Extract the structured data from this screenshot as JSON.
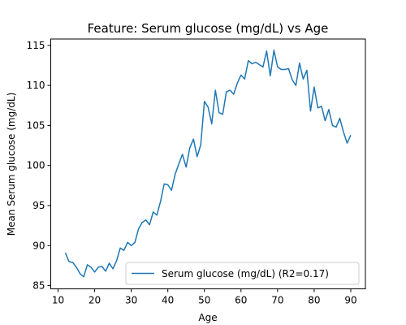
{
  "chart_data": {
    "type": "line",
    "title": "Feature: Serum glucose (mg/dL) vs Age",
    "xlabel": "Age",
    "ylabel": "Mean Serum glucose (mg/dL)",
    "xlim": [
      8,
      94
    ],
    "ylim": [
      84.6,
      115.8
    ],
    "xticks": [
      10,
      20,
      30,
      40,
      50,
      60,
      70,
      80,
      90
    ],
    "yticks": [
      85,
      90,
      95,
      100,
      105,
      110,
      115
    ],
    "grid": false,
    "legend_position": "lower-right",
    "series": [
      {
        "name": "Serum glucose (mg/dL) (R2=0.17)",
        "color": "#1f77b4",
        "x": [
          12,
          13,
          14,
          15,
          16,
          17,
          18,
          19,
          20,
          21,
          22,
          23,
          24,
          25,
          26,
          27,
          28,
          29,
          30,
          31,
          32,
          33,
          34,
          35,
          36,
          37,
          38,
          39,
          40,
          41,
          42,
          43,
          44,
          45,
          46,
          47,
          48,
          49,
          50,
          51,
          52,
          53,
          54,
          55,
          56,
          57,
          58,
          59,
          60,
          61,
          62,
          63,
          64,
          65,
          66,
          67,
          68,
          69,
          70,
          71,
          72,
          73,
          74,
          75,
          76,
          77,
          78,
          79,
          80,
          81,
          82,
          83,
          84,
          85,
          86,
          87,
          88,
          89,
          90
        ],
        "y": [
          89.1,
          88.0,
          87.9,
          87.3,
          86.5,
          86.1,
          87.6,
          87.3,
          86.7,
          87.3,
          87.4,
          86.8,
          87.8,
          87.1,
          88.1,
          89.7,
          89.4,
          90.4,
          90.0,
          90.4,
          92.1,
          92.9,
          93.2,
          92.6,
          94.2,
          93.8,
          95.5,
          97.7,
          97.6,
          96.9,
          98.9,
          100.2,
          101.4,
          99.8,
          102.2,
          103.3,
          101.1,
          102.6,
          108.0,
          107.3,
          105.2,
          109.4,
          106.6,
          106.4,
          109.2,
          109.4,
          108.9,
          110.3,
          111.3,
          110.8,
          113.1,
          112.7,
          112.9,
          112.6,
          112.3,
          114.3,
          111.2,
          114.4,
          112.3,
          112.0,
          112.0,
          112.1,
          110.7,
          110.0,
          112.8,
          110.8,
          111.9,
          106.8,
          109.8,
          107.2,
          107.4,
          105.6,
          107.0,
          105.0,
          104.8,
          105.9,
          104.2,
          102.8,
          103.8
        ]
      }
    ]
  }
}
